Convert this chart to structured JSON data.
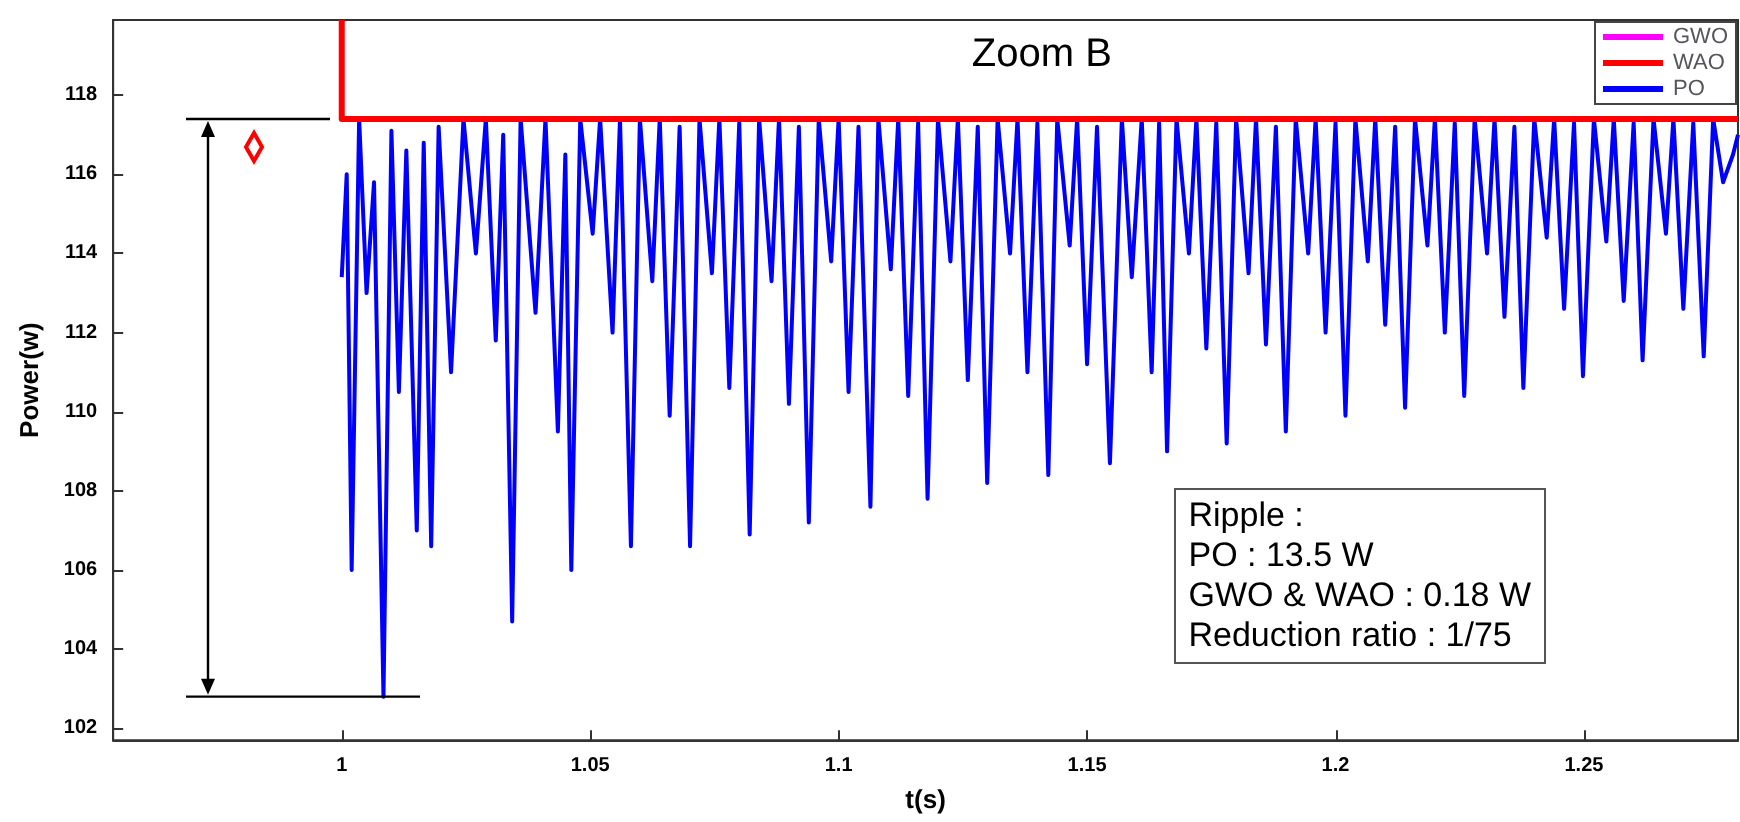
{
  "chart_data": {
    "type": "line",
    "xlabel": "t(s)",
    "ylabel": "Power(w)",
    "xlim": [
      0.954,
      1.281
    ],
    "xticks": [
      1,
      1.05,
      1.1,
      1.15,
      1.2,
      1.25
    ],
    "ylim": [
      101.7,
      119.9
    ],
    "yticks": [
      102,
      104,
      106,
      108,
      110,
      112,
      114,
      116,
      118
    ],
    "grid": false,
    "legend": "top right",
    "marker": "none",
    "line_style": "solid",
    "annotations": [
      "Zoom B",
      "Ripple :\nPO : 13.5 W\nGWO & WAO : 0.18 W\nReduction ratio : 1/75"
    ],
    "series": [
      {
        "name": "PO",
        "color": "#0000ff",
        "x": [
          1.0,
          1.001,
          1.002,
          1.0035,
          1.005,
          1.0065,
          1.0084,
          1.01,
          1.0115,
          1.013,
          1.0151,
          1.0165,
          1.018,
          1.0195,
          1.022,
          1.0245,
          1.027,
          1.029,
          1.031,
          1.0325,
          1.0343,
          1.036,
          1.039,
          1.041,
          1.0435,
          1.045,
          1.0462,
          1.048,
          1.0505,
          1.052,
          1.0545,
          1.056,
          1.0582,
          1.06,
          1.0625,
          1.064,
          1.066,
          1.068,
          1.0701,
          1.072,
          1.0745,
          1.076,
          1.078,
          1.08,
          1.0821,
          1.084,
          1.0865,
          1.088,
          1.09,
          1.092,
          1.094,
          1.096,
          1.0985,
          1.1,
          1.102,
          1.104,
          1.1064,
          1.108,
          1.1105,
          1.112,
          1.114,
          1.116,
          1.1179,
          1.12,
          1.1225,
          1.124,
          1.126,
          1.128,
          1.1299,
          1.132,
          1.1345,
          1.136,
          1.138,
          1.14,
          1.1422,
          1.144,
          1.1465,
          1.148,
          1.15,
          1.152,
          1.1546,
          1.157,
          1.159,
          1.161,
          1.163,
          1.1645,
          1.1661,
          1.168,
          1.1705,
          1.172,
          1.174,
          1.176,
          1.1781,
          1.18,
          1.1825,
          1.184,
          1.186,
          1.188,
          1.19,
          1.192,
          1.1945,
          1.196,
          1.198,
          1.2,
          1.202,
          1.204,
          1.2065,
          1.208,
          1.21,
          1.212,
          1.214,
          1.216,
          1.2185,
          1.22,
          1.222,
          1.224,
          1.2259,
          1.228,
          1.2305,
          1.232,
          1.234,
          1.236,
          1.2378,
          1.24,
          1.2425,
          1.244,
          1.246,
          1.248,
          1.2498,
          1.252,
          1.2545,
          1.256,
          1.258,
          1.26,
          1.2618,
          1.264,
          1.2665,
          1.268,
          1.27,
          1.272,
          1.2741,
          1.276,
          1.278,
          1.28,
          1.281
        ],
        "values": [
          113.4,
          116.0,
          106.0,
          117.4,
          113.0,
          115.8,
          102.8,
          117.1,
          110.5,
          116.6,
          107.0,
          116.8,
          106.6,
          117.2,
          111.0,
          117.4,
          114.0,
          117.4,
          111.8,
          117.0,
          104.7,
          117.4,
          112.5,
          117.4,
          109.5,
          116.5,
          106.0,
          117.4,
          114.5,
          117.4,
          112.0,
          117.4,
          106.6,
          117.4,
          113.3,
          117.4,
          109.9,
          117.2,
          106.6,
          117.4,
          113.5,
          117.4,
          110.6,
          117.3,
          106.9,
          117.4,
          113.3,
          117.4,
          110.2,
          117.2,
          107.2,
          117.4,
          113.8,
          117.4,
          110.5,
          117.2,
          107.6,
          117.4,
          113.6,
          117.4,
          110.4,
          117.3,
          107.8,
          117.4,
          113.8,
          117.4,
          110.8,
          117.2,
          108.2,
          117.4,
          114.0,
          117.4,
          111.0,
          117.3,
          108.4,
          117.4,
          114.2,
          117.4,
          111.2,
          117.2,
          108.7,
          117.4,
          113.4,
          117.4,
          111.0,
          117.3,
          109.0,
          117.4,
          114.0,
          117.4,
          111.6,
          117.3,
          109.2,
          117.4,
          113.5,
          117.4,
          111.7,
          117.2,
          109.5,
          117.4,
          114.0,
          117.4,
          112.0,
          117.3,
          109.9,
          117.4,
          113.8,
          117.4,
          112.2,
          117.2,
          110.1,
          117.4,
          114.2,
          117.4,
          112.0,
          117.3,
          110.4,
          117.4,
          114.0,
          117.4,
          112.4,
          117.2,
          110.6,
          117.4,
          114.4,
          117.4,
          112.6,
          117.3,
          110.9,
          117.4,
          114.3,
          117.4,
          112.8,
          117.3,
          111.3,
          117.4,
          114.5,
          117.4,
          112.6,
          117.3,
          111.4,
          117.4,
          115.8,
          116.5,
          117.0
        ]
      },
      {
        "name": "GWO",
        "color": "#ff00ff",
        "values": [
          null
        ]
      },
      {
        "name": "WAO",
        "color": "#ff0000",
        "x": [
          1.0,
          1.0,
          1.281
        ],
        "values": [
          119.9,
          117.4,
          117.4
        ]
      }
    ]
  }
}
